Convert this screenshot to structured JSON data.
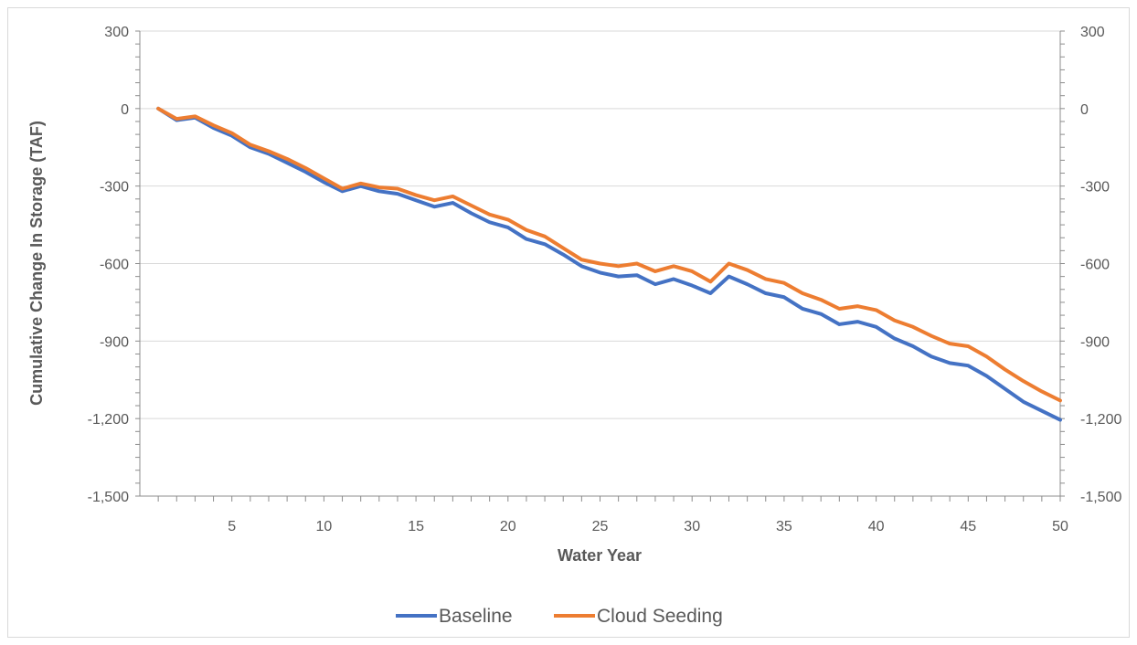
{
  "chart_data": {
    "type": "line",
    "xlabel": "Water Year",
    "ylabel": "Cumulative Change In Storage (TAF)",
    "ylim": [
      -1500,
      300
    ],
    "xlim": [
      0,
      50
    ],
    "y_ticks": [
      300,
      0,
      -300,
      -600,
      -900,
      -1200,
      -1500
    ],
    "y_tick_labels": [
      "300",
      "0",
      "-300",
      "-600",
      "-900",
      "-1,200",
      "-1,500"
    ],
    "x_ticks": [
      5,
      10,
      15,
      20,
      25,
      30,
      35,
      40,
      45,
      50
    ],
    "x_tick_labels": [
      "5",
      "10",
      "15",
      "20",
      "25",
      "30",
      "35",
      "40",
      "45",
      "50"
    ],
    "secondary_y_axis": true,
    "grid": "horizontal",
    "legend_position": "bottom",
    "x": [
      1,
      2,
      3,
      4,
      5,
      6,
      7,
      8,
      9,
      10,
      11,
      12,
      13,
      14,
      15,
      16,
      17,
      18,
      19,
      20,
      21,
      22,
      23,
      24,
      25,
      26,
      27,
      28,
      29,
      30,
      31,
      32,
      33,
      34,
      35,
      36,
      37,
      38,
      39,
      40,
      41,
      42,
      43,
      44,
      45,
      46,
      47,
      48,
      49,
      50
    ],
    "series": [
      {
        "name": "Baseline",
        "color": "#4472C4",
        "values": [
          0,
          -45,
          -35,
          -75,
          -105,
          -150,
          -175,
          -210,
          -245,
          -285,
          -320,
          -300,
          -320,
          -330,
          -355,
          -380,
          -365,
          -405,
          -440,
          -460,
          -505,
          -525,
          -565,
          -610,
          -635,
          -650,
          -645,
          -680,
          -660,
          -685,
          -715,
          -650,
          -680,
          -715,
          -730,
          -775,
          -795,
          -835,
          -825,
          -845,
          -890,
          -920,
          -960,
          -985,
          -995,
          -1035,
          -1085,
          -1135,
          -1170,
          -1205
        ]
      },
      {
        "name": "Cloud Seeding",
        "color": "#ED7D31",
        "values": [
          0,
          -40,
          -30,
          -65,
          -95,
          -140,
          -165,
          -195,
          -230,
          -270,
          -310,
          -290,
          -305,
          -310,
          -335,
          -355,
          -340,
          -375,
          -410,
          -430,
          -470,
          -495,
          -540,
          -585,
          -600,
          -610,
          -600,
          -630,
          -610,
          -630,
          -670,
          -600,
          -625,
          -660,
          -675,
          -715,
          -740,
          -775,
          -765,
          -780,
          -820,
          -845,
          -880,
          -910,
          -920,
          -960,
          -1010,
          -1055,
          -1095,
          -1130
        ]
      }
    ]
  }
}
